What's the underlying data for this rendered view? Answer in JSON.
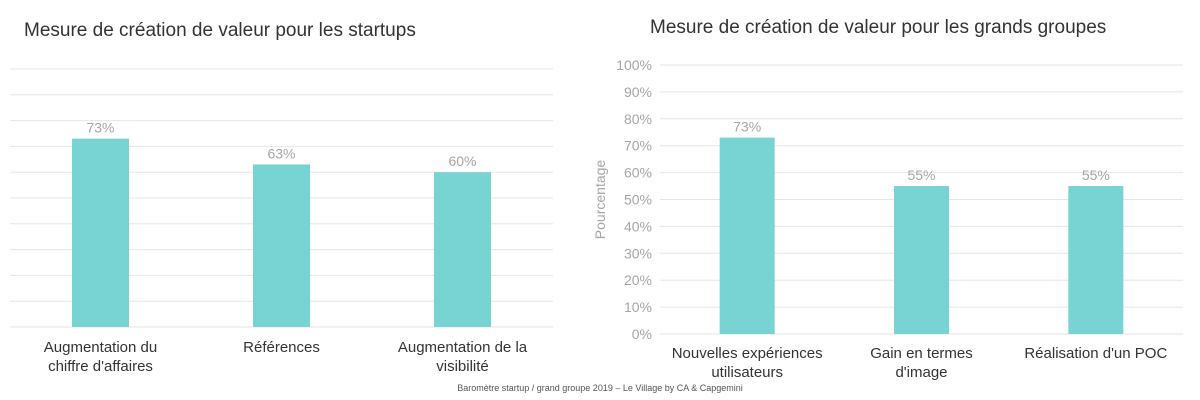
{
  "chart_data": [
    {
      "type": "bar",
      "title": "Mesure de création de valeur pour les startups",
      "categories": [
        [
          "Augmentation du",
          "chiffre d'affaires"
        ],
        [
          "Références"
        ],
        [
          "Augmentation de la",
          "visibilité"
        ]
      ],
      "values": [
        73,
        63,
        60
      ],
      "data_labels": [
        "73%",
        "63%",
        "60%"
      ],
      "ylim": [
        0,
        100
      ],
      "grid": true,
      "y_ticks_visible": false,
      "bar_color": "#78d3d3"
    },
    {
      "type": "bar",
      "title": "Mesure de création de valeur pour les grands groupes",
      "categories": [
        [
          "Nouvelles expériences",
          "utilisateurs"
        ],
        [
          "Gain en termes",
          "d'image"
        ],
        [
          "Réalisation d'un POC"
        ]
      ],
      "values": [
        73,
        55,
        55
      ],
      "data_labels": [
        "73%",
        "55%",
        "55%"
      ],
      "ylabel": "Pourcentage",
      "ylim": [
        0,
        100
      ],
      "y_ticks": [
        0,
        10,
        20,
        30,
        40,
        50,
        60,
        70,
        80,
        90,
        100
      ],
      "y_tick_labels": [
        "0%",
        "10%",
        "20%",
        "30%",
        "40%",
        "50%",
        "60%",
        "70%",
        "80%",
        "90%",
        "100%"
      ],
      "grid": true,
      "bar_color": "#78d3d3"
    }
  ],
  "footer": "Baromètre startup / grand groupe 2019 – Le Village by CA & Capgemini",
  "colors": {
    "bar": "#78d3d3",
    "grid": "#e6e6e6",
    "data_label": "#a6a6a6",
    "axis_text": "#a6a6a6",
    "category_text": "#333333"
  }
}
